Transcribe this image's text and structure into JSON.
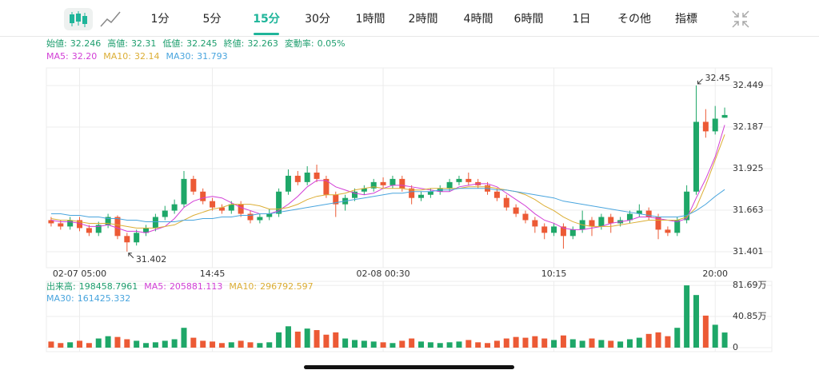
{
  "toolbar": {
    "tabs": [
      {
        "label": "1分"
      },
      {
        "label": "5分"
      },
      {
        "label": "15分",
        "active": true
      },
      {
        "label": "30分"
      },
      {
        "label": "1時間"
      },
      {
        "label": "2時間"
      },
      {
        "label": "4時間"
      },
      {
        "label": "6時間"
      },
      {
        "label": "1日"
      },
      {
        "label": "その他"
      },
      {
        "label": "指標"
      }
    ]
  },
  "info": [
    {
      "label": "始値:",
      "value": "32.246"
    },
    {
      "label": "高値:",
      "value": "32.31"
    },
    {
      "label": "低値:",
      "value": "32.245"
    },
    {
      "label": "終値:",
      "value": "32.263"
    },
    {
      "label": "変動率:",
      "value": "0.05%"
    }
  ],
  "info_color": "#1e9e6e",
  "chart_data": {
    "type": "candlestick",
    "categories": [
      null,
      null,
      null,
      "02-07 05:00",
      null,
      null,
      null,
      null,
      null,
      null,
      null,
      null,
      null,
      null,
      null,
      null,
      null,
      "14:45",
      null,
      null,
      null,
      null,
      null,
      null,
      null,
      null,
      null,
      null,
      null,
      null,
      null,
      null,
      null,
      null,
      null,
      "02-08 00:30",
      null,
      null,
      null,
      null,
      null,
      null,
      null,
      null,
      null,
      null,
      null,
      null,
      null,
      null,
      null,
      null,
      null,
      "10:15",
      null,
      null,
      null,
      null,
      null,
      null,
      null,
      null,
      null,
      null,
      null,
      null,
      null,
      null,
      null,
      null,
      "20:00",
      null
    ],
    "open": [
      31.6,
      31.58,
      31.56,
      31.6,
      31.55,
      31.52,
      31.57,
      31.62,
      31.5,
      31.46,
      31.52,
      31.55,
      31.62,
      31.66,
      31.7,
      31.86,
      31.78,
      31.72,
      31.68,
      31.66,
      31.7,
      31.64,
      31.6,
      31.62,
      31.64,
      31.78,
      31.88,
      31.84,
      31.9,
      31.86,
      31.76,
      31.7,
      31.74,
      31.78,
      31.8,
      31.84,
      31.82,
      31.86,
      31.8,
      31.74,
      31.76,
      31.78,
      31.8,
      31.84,
      31.86,
      31.84,
      31.82,
      31.78,
      31.74,
      31.68,
      31.64,
      31.6,
      31.56,
      31.52,
      31.56,
      31.5,
      31.54,
      31.6,
      31.56,
      31.62,
      31.58,
      31.6,
      31.64,
      31.66,
      31.62,
      31.54,
      31.52,
      31.6,
      31.78,
      32.22,
      32.16,
      32.246
    ],
    "high": [
      31.62,
      31.6,
      31.62,
      31.62,
      31.57,
      31.59,
      31.64,
      31.63,
      31.52,
      31.54,
      31.57,
      31.64,
      31.69,
      31.73,
      31.91,
      31.88,
      31.8,
      31.74,
      31.7,
      31.72,
      31.72,
      31.66,
      31.64,
      31.67,
      31.8,
      31.92,
      31.91,
      31.94,
      31.95,
      31.88,
      31.78,
      31.76,
      31.8,
      31.82,
      31.86,
      31.87,
      31.88,
      31.88,
      31.82,
      31.78,
      31.8,
      31.82,
      31.86,
      31.88,
      31.9,
      31.86,
      31.84,
      31.8,
      31.76,
      31.7,
      31.66,
      31.62,
      31.58,
      31.58,
      31.58,
      31.56,
      31.66,
      31.62,
      31.64,
      31.64,
      31.62,
      31.66,
      31.7,
      31.68,
      31.64,
      31.56,
      31.62,
      31.82,
      32.45,
      32.3,
      32.32,
      32.31
    ],
    "low": [
      31.56,
      31.54,
      31.54,
      31.53,
      31.5,
      31.5,
      31.55,
      31.48,
      31.402,
      31.44,
      31.5,
      31.53,
      31.6,
      31.64,
      31.68,
      31.76,
      31.7,
      31.66,
      31.64,
      31.64,
      31.62,
      31.58,
      31.58,
      31.6,
      31.62,
      31.76,
      31.82,
      31.82,
      31.84,
      31.74,
      31.62,
      31.66,
      31.72,
      31.76,
      31.78,
      31.8,
      31.8,
      31.78,
      31.7,
      31.72,
      31.74,
      31.76,
      31.78,
      31.82,
      31.82,
      31.8,
      31.76,
      31.72,
      31.66,
      31.62,
      31.58,
      31.52,
      31.48,
      31.5,
      31.42,
      31.48,
      31.52,
      31.5,
      31.54,
      31.52,
      31.56,
      31.58,
      31.62,
      31.6,
      31.48,
      31.5,
      31.5,
      31.58,
      31.76,
      32.12,
      32.14,
      32.245
    ],
    "close": [
      31.58,
      31.56,
      31.6,
      31.55,
      31.52,
      31.57,
      31.62,
      31.5,
      31.46,
      31.52,
      31.55,
      31.62,
      31.66,
      31.7,
      31.86,
      31.78,
      31.72,
      31.68,
      31.66,
      31.7,
      31.64,
      31.6,
      31.62,
      31.64,
      31.78,
      31.88,
      31.84,
      31.9,
      31.86,
      31.76,
      31.7,
      31.74,
      31.78,
      31.8,
      31.84,
      31.82,
      31.86,
      31.8,
      31.74,
      31.76,
      31.78,
      31.8,
      31.84,
      31.86,
      31.84,
      31.82,
      31.78,
      31.74,
      31.68,
      31.64,
      31.6,
      31.56,
      31.52,
      31.56,
      31.5,
      31.54,
      31.6,
      31.56,
      31.62,
      31.58,
      31.6,
      31.64,
      31.66,
      31.62,
      31.54,
      31.52,
      31.6,
      31.78,
      32.22,
      32.16,
      32.24,
      32.263
    ],
    "up_color": "#1ea768",
    "down_color": "#ec5a35",
    "ylim": [
      31.3,
      32.56
    ],
    "yticks": [
      31.401,
      31.663,
      31.925,
      32.187,
      32.449
    ],
    "grid": true,
    "series": [
      {
        "name": "MA5:",
        "last": "32.20",
        "color": "#d23fd6",
        "values": [
          31.6,
          31.59,
          31.59,
          31.58,
          31.56,
          31.56,
          31.57,
          31.55,
          31.53,
          31.53,
          31.52,
          31.54,
          31.56,
          31.61,
          31.68,
          31.72,
          31.74,
          31.75,
          31.74,
          31.71,
          31.68,
          31.66,
          31.64,
          31.64,
          31.66,
          31.7,
          31.75,
          31.81,
          31.85,
          31.85,
          31.81,
          31.79,
          31.77,
          31.76,
          31.77,
          31.8,
          31.82,
          31.82,
          31.81,
          31.8,
          31.79,
          31.78,
          31.78,
          31.81,
          31.82,
          31.83,
          31.83,
          31.81,
          31.77,
          31.73,
          31.69,
          31.64,
          31.6,
          31.58,
          31.55,
          31.54,
          31.54,
          31.55,
          31.56,
          31.58,
          31.59,
          31.6,
          31.62,
          31.62,
          31.61,
          31.6,
          31.59,
          31.61,
          31.74,
          31.86,
          32.0,
          32.2
        ]
      },
      {
        "name": "MA10:",
        "last": "32.14",
        "color": "#dcae35",
        "values": [
          31.61,
          31.6,
          31.6,
          31.59,
          31.58,
          31.58,
          31.58,
          31.57,
          31.56,
          31.55,
          31.55,
          31.55,
          31.56,
          31.57,
          31.6,
          31.63,
          31.65,
          31.67,
          31.68,
          31.7,
          31.7,
          31.7,
          31.69,
          31.67,
          31.67,
          31.68,
          31.7,
          31.73,
          31.75,
          31.76,
          31.76,
          31.77,
          31.79,
          31.8,
          31.81,
          31.8,
          31.8,
          31.8,
          31.79,
          31.79,
          31.8,
          31.8,
          31.8,
          31.8,
          31.81,
          31.81,
          31.81,
          31.8,
          31.79,
          31.78,
          31.76,
          31.73,
          31.69,
          31.66,
          31.62,
          31.59,
          31.57,
          31.56,
          31.56,
          31.56,
          31.57,
          31.58,
          31.59,
          31.6,
          31.6,
          31.6,
          31.6,
          31.62,
          31.68,
          31.82,
          31.98,
          32.14
        ]
      },
      {
        "name": "MA30:",
        "last": "31.793",
        "color": "#49a5de",
        "values": [
          31.64,
          31.64,
          31.63,
          31.63,
          31.62,
          31.62,
          31.61,
          31.61,
          31.6,
          31.6,
          31.59,
          31.59,
          31.59,
          31.59,
          31.6,
          31.6,
          31.61,
          31.61,
          31.62,
          31.62,
          31.63,
          31.63,
          31.64,
          31.64,
          31.65,
          31.66,
          31.67,
          31.68,
          31.69,
          31.7,
          31.71,
          31.72,
          31.73,
          31.74,
          31.75,
          31.76,
          31.77,
          31.77,
          31.78,
          31.78,
          31.78,
          31.79,
          31.79,
          31.8,
          31.8,
          31.8,
          31.8,
          31.79,
          31.79,
          31.78,
          31.77,
          31.76,
          31.75,
          31.74,
          31.72,
          31.71,
          31.7,
          31.69,
          31.68,
          31.67,
          31.66,
          31.65,
          31.64,
          31.63,
          31.62,
          31.62,
          31.62,
          31.63,
          31.66,
          31.7,
          31.75,
          31.793
        ]
      }
    ],
    "annotations": {
      "high": 32.45,
      "low": 31.402
    },
    "volume": {
      "legend": [
        {
          "label": "出来高:",
          "value": "198458.7961",
          "color": "#1e9e6e"
        },
        {
          "label": "MA5:",
          "value": "205881.113",
          "color": "#d23fd6"
        },
        {
          "label": "MA10:",
          "value": "296792.597",
          "color": "#dcae35"
        },
        {
          "label": "MA30:",
          "value": "161425.332",
          "color": "#49a5de"
        }
      ],
      "values": [
        80000,
        60000,
        70000,
        90000,
        60000,
        120000,
        150000,
        140000,
        110000,
        90000,
        60000,
        70000,
        90000,
        110000,
        260000,
        130000,
        90000,
        80000,
        60000,
        70000,
        90000,
        70000,
        60000,
        70000,
        200000,
        280000,
        210000,
        250000,
        230000,
        170000,
        200000,
        120000,
        100000,
        90000,
        80000,
        70000,
        60000,
        90000,
        120000,
        80000,
        70000,
        60000,
        70000,
        80000,
        100000,
        70000,
        60000,
        90000,
        120000,
        140000,
        130000,
        150000,
        120000,
        100000,
        160000,
        110000,
        90000,
        120000,
        100000,
        90000,
        80000,
        110000,
        130000,
        180000,
        200000,
        150000,
        260000,
        816900,
        690000,
        420000,
        300000,
        198458.7961
      ],
      "ylim": [
        0,
        870000
      ],
      "yticks": [
        0,
        {
          "value": 408500,
          "label": "40.85万"
        },
        {
          "value": 816900,
          "label": "81.69万"
        }
      ]
    }
  }
}
